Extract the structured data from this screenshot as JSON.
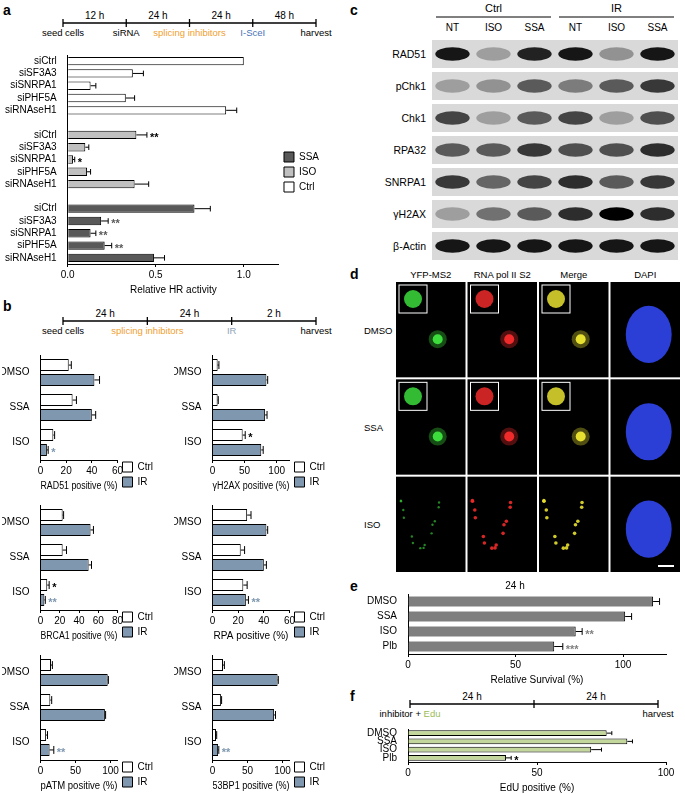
{
  "panel_labels": [
    "a",
    "b",
    "c",
    "d",
    "e",
    "f"
  ],
  "timelines": [
    {
      "intervals": [
        "12 h",
        "24 h",
        "24 h",
        "48 h"
      ],
      "events": [
        [
          {
            "text": "seed cells"
          }
        ],
        [
          {
            "text": "siRNA"
          }
        ],
        [
          {
            "text": "splicing inhibitors",
            "color": "#f0a030"
          }
        ],
        [
          {
            "text": "I-SceI",
            "color": "#4a72b8"
          }
        ],
        [
          {
            "text": "harvest"
          }
        ]
      ]
    },
    {
      "intervals": [
        "24 h",
        "24 h",
        "2 h"
      ],
      "events": [
        [
          {
            "text": "seed cells"
          }
        ],
        [
          {
            "text": "splicing inhibitors",
            "color": "#f0a030"
          }
        ],
        [
          {
            "text": "IR",
            "color": "#8fa3b8"
          }
        ],
        [
          {
            "text": "harvest"
          }
        ]
      ]
    },
    {
      "intervals": [
        "24 h",
        "24 h"
      ],
      "events": [
        [
          {
            "text": "inhibitor + "
          },
          {
            "text": "Edu",
            "color": "#9bbb59"
          }
        ],
        [],
        [
          {
            "text": "harvest"
          }
        ]
      ]
    }
  ],
  "chart_data": [
    {
      "type": "bar",
      "orientation": "horizontal",
      "categories": [
        "siCtrl",
        "siSF3A3",
        "siSNRPA1",
        "siPHF5A",
        "siRNAseH1",
        null,
        "siCtrl",
        "siSF3A3",
        "siSNRPA1",
        "siPHF5A",
        "siRNAseH1",
        null,
        "siCtrl",
        "siSF3A3",
        "siSNRPA1",
        "siPHF5A",
        "siRNAseH1"
      ],
      "series": [
        {
          "name": "SSA",
          "color": "#595959",
          "values": [
            null,
            null,
            null,
            null,
            null,
            null,
            null,
            null,
            null,
            null,
            null,
            null,
            0.72,
            0.19,
            0.13,
            0.21,
            0.49
          ],
          "errors": [
            null,
            null,
            null,
            null,
            null,
            null,
            null,
            null,
            null,
            null,
            null,
            null,
            0.09,
            0.04,
            0.03,
            0.04,
            0.06
          ],
          "significance": [
            null,
            null,
            null,
            null,
            null,
            null,
            null,
            null,
            null,
            null,
            null,
            null,
            null,
            "**",
            "**",
            "**",
            null
          ]
        },
        {
          "name": "ISO",
          "color": "#c0c0c0",
          "values": [
            null,
            null,
            null,
            null,
            null,
            null,
            0.39,
            0.1,
            0.03,
            0.11,
            0.38,
            null,
            null,
            null,
            null,
            null,
            null
          ],
          "errors": [
            null,
            null,
            null,
            null,
            null,
            null,
            0.06,
            0.02,
            0.01,
            0.02,
            0.08,
            null,
            null,
            null,
            null,
            null,
            null
          ],
          "significance": [
            null,
            null,
            null,
            null,
            null,
            null,
            "**",
            null,
            "*",
            null,
            null,
            null,
            null,
            null,
            null,
            null,
            null
          ]
        },
        {
          "name": "Ctrl",
          "color": "#ffffff",
          "values": [
            1.0,
            0.37,
            0.13,
            0.33,
            0.9,
            null,
            null,
            null,
            null,
            null,
            null,
            null,
            null,
            null,
            null,
            null,
            null
          ],
          "errors": [
            null,
            0.06,
            0.03,
            0.05,
            0.06,
            null,
            null,
            null,
            null,
            null,
            null,
            null,
            null,
            null,
            null,
            null,
            null
          ]
        }
      ],
      "xlabel": "Relative HR activity",
      "xlim": [
        0,
        1.2
      ],
      "xticks": [
        {
          "value": 0,
          "label": "0.0"
        },
        0.5,
        {
          "value": 1,
          "label": "1.0"
        }
      ],
      "grid": false,
      "legend": "right"
    },
    {
      "type": "bar",
      "orientation": "horizontal",
      "categories": [
        "DMSO",
        "SSA",
        "ISO"
      ],
      "series": [
        {
          "name": "Ctrl",
          "color": "#ffffff",
          "values": [
            22,
            25,
            10
          ],
          "errors": [
            2,
            3,
            1
          ]
        },
        {
          "name": "IR",
          "color": "#7f98b0",
          "values": [
            42,
            40,
            5
          ],
          "errors": [
            4,
            3,
            1
          ],
          "significance": [
            null,
            null,
            "*"
          ]
        }
      ],
      "xlabel": "RAD51 positive (%)",
      "xlim": [
        0,
        60
      ],
      "xticks": [
        0,
        20,
        40,
        60
      ],
      "grid": false,
      "legend": "lower right"
    },
    {
      "type": "bar",
      "orientation": "horizontal",
      "categories": [
        "DMSO",
        "SSA",
        "ISO"
      ],
      "series": [
        {
          "name": "Ctrl",
          "color": "#ffffff",
          "values": [
            8,
            8,
            47
          ],
          "errors": [
            2,
            1,
            4
          ],
          "significance": [
            null,
            null,
            "*"
          ]
        },
        {
          "name": "IR",
          "color": "#7f98b0",
          "values": [
            84,
            82,
            76
          ],
          "errors": [
            2,
            3,
            3
          ]
        }
      ],
      "xlabel": "γH2AX positive (%)",
      "xlim": [
        0,
        120
      ],
      "xticks": [
        0,
        50,
        100
      ],
      "grid": false,
      "legend": "lower right"
    },
    {
      "type": "bar",
      "orientation": "horizontal",
      "categories": [
        "DMSO",
        "SSA",
        "ISO"
      ],
      "series": [
        {
          "name": "Ctrl",
          "color": "#ffffff",
          "values": [
            23,
            23,
            7
          ],
          "errors": [
            1,
            4,
            2
          ],
          "significance": [
            null,
            null,
            "*"
          ]
        },
        {
          "name": "IR",
          "color": "#7f98b0",
          "values": [
            52,
            50,
            4
          ],
          "errors": [
            3,
            3,
            1
          ],
          "significance": [
            null,
            null,
            "**"
          ]
        }
      ],
      "xlabel": "BRCA1 positive (%)",
      "xlim": [
        0,
        80
      ],
      "xticks": [
        0,
        20,
        40,
        60,
        80
      ],
      "grid": false,
      "legend": "lower right"
    },
    {
      "type": "bar",
      "orientation": "horizontal",
      "categories": [
        "DMSO",
        "SSA",
        "ISO"
      ],
      "series": [
        {
          "name": "Ctrl",
          "color": "#ffffff",
          "values": [
            27,
            22,
            24
          ],
          "errors": [
            3,
            3,
            3
          ]
        },
        {
          "name": "IR",
          "color": "#7f98b0",
          "values": [
            42,
            40,
            26
          ],
          "errors": [
            1,
            2,
            2
          ],
          "significance": [
            null,
            null,
            "**"
          ]
        }
      ],
      "xlabel": "RPA positive (%)",
      "xlim": [
        0,
        60
      ],
      "xticks": [
        0,
        20,
        40,
        60
      ],
      "grid": false,
      "legend": "lower right"
    },
    {
      "type": "bar",
      "orientation": "horizontal",
      "categories": [
        "DMSO",
        "SSA",
        "ISO"
      ],
      "series": [
        {
          "name": "Ctrl",
          "color": "#ffffff",
          "values": [
            15,
            14,
            8
          ],
          "errors": [
            2,
            2,
            2
          ]
        },
        {
          "name": "IR",
          "color": "#7f98b0",
          "values": [
            96,
            92,
            13
          ],
          "errors": [
            1,
            1,
            6
          ],
          "significance": [
            null,
            null,
            "**"
          ]
        }
      ],
      "xlabel": "pATM positive (%)",
      "xlim": [
        0,
        110
      ],
      "xticks": [
        0,
        50,
        100
      ],
      "grid": false,
      "legend": "lower right"
    },
    {
      "type": "bar",
      "orientation": "horizontal",
      "categories": [
        "DMSO",
        "SSA",
        "ISO"
      ],
      "series": [
        {
          "name": "Ctrl",
          "color": "#ffffff",
          "values": [
            15,
            12,
            5
          ],
          "errors": [
            2,
            1,
            1
          ]
        },
        {
          "name": "IR",
          "color": "#7f98b0",
          "values": [
            93,
            88,
            8
          ],
          "errors": [
            1,
            2,
            1
          ],
          "significance": [
            null,
            null,
            "**"
          ]
        }
      ],
      "xlabel": "53BP1 positive (%)",
      "xlim": [
        0,
        110
      ],
      "xticks": [
        0,
        50,
        100
      ],
      "grid": false,
      "legend": "lower right"
    },
    {
      "type": "bar",
      "orientation": "horizontal",
      "title": "24 h",
      "categories": [
        "DMSO",
        "SSA",
        "ISO",
        "Plb"
      ],
      "values": [
        114,
        101,
        78,
        68
      ],
      "errors": [
        3,
        3,
        3,
        4
      ],
      "significance": [
        null,
        null,
        "**",
        "***"
      ],
      "color": "#7f7f7f",
      "xlabel": "Relative Survival (%)",
      "xlim": [
        0,
        120
      ],
      "xticks": [
        0,
        50,
        100
      ],
      "grid": false
    },
    {
      "type": "bar",
      "orientation": "horizontal",
      "categories": [
        "DMSO",
        "SSA",
        "ISO",
        "Plb"
      ],
      "values": [
        77,
        85,
        71,
        38
      ],
      "errors": [
        2,
        2,
        4,
        2
      ],
      "significance": [
        null,
        null,
        null,
        "*"
      ],
      "color": "#c3d69b",
      "xlabel": "EdU positive (%)",
      "xlim": [
        0,
        100
      ],
      "xticks": [
        0,
        50,
        100
      ],
      "grid": false
    }
  ],
  "blot": {
    "groups": [
      {
        "label": "Ctrl",
        "lanes": [
          "NT",
          "ISO",
          "SSA"
        ]
      },
      {
        "label": "IR",
        "lanes": [
          "NT",
          "ISO",
          "SSA"
        ]
      }
    ],
    "rows": [
      {
        "label": "RAD51",
        "intensity": [
          0.9,
          0.3,
          0.85,
          0.9,
          0.35,
          0.9
        ]
      },
      {
        "label": "pChk1",
        "intensity": [
          0.3,
          0.35,
          0.6,
          0.45,
          0.6,
          0.75
        ]
      },
      {
        "label": "Chk1",
        "intensity": [
          0.7,
          0.3,
          0.6,
          0.7,
          0.3,
          0.65
        ]
      },
      {
        "label": "RPA32",
        "intensity": [
          0.6,
          0.6,
          0.75,
          0.65,
          0.65,
          0.8
        ]
      },
      {
        "label": "SNRPA1",
        "intensity": [
          0.75,
          0.55,
          0.7,
          0.8,
          0.6,
          0.75
        ]
      },
      {
        "label": "γH2AX",
        "intensity": [
          0.3,
          0.5,
          0.6,
          0.8,
          1.0,
          0.8
        ]
      },
      {
        "label": "β-Actin",
        "intensity": [
          0.9,
          0.9,
          0.9,
          0.9,
          0.9,
          0.9
        ]
      }
    ]
  },
  "microscopy": {
    "columns": [
      "YFP-MS2",
      "RNA pol II S2",
      "Merge",
      "DAPI"
    ],
    "rows": [
      "DMSO",
      "SSA",
      "ISO"
    ]
  }
}
